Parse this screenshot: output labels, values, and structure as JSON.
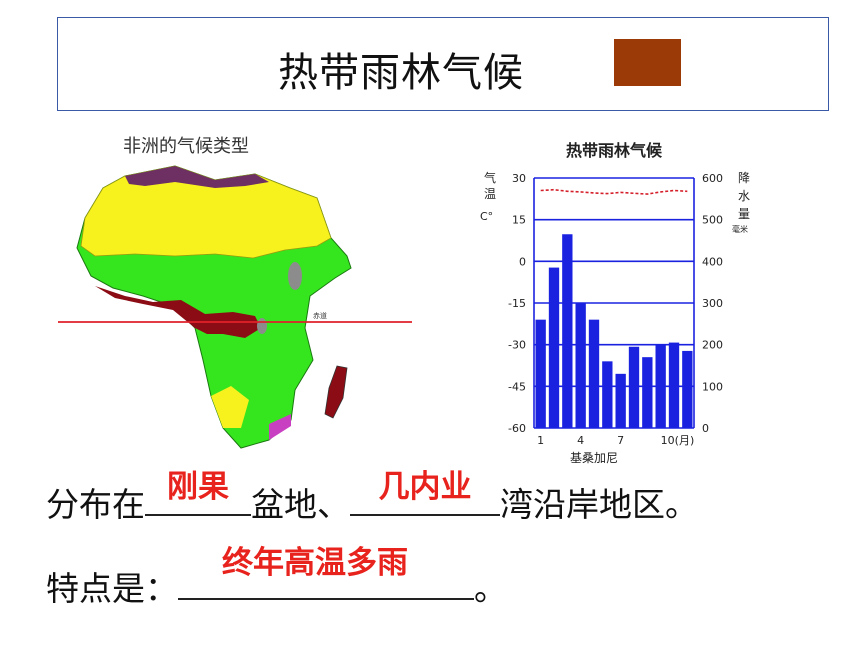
{
  "header": {
    "title": "热带雨林气候",
    "swatch_color": "#9b3a06"
  },
  "map": {
    "title": "非洲的气候类型",
    "equator_label": "赤道"
  },
  "chart_data": {
    "type": "bar",
    "title": "热带雨林气候",
    "left_axis_label": "气温C°",
    "right_axis_label": "降水量毫米",
    "y_left_ticks": [
      "30",
      "15",
      "0",
      "-15",
      "-30",
      "-45",
      "-60"
    ],
    "y_right_ticks": [
      "600",
      "500",
      "400",
      "300",
      "200",
      "100",
      "0"
    ],
    "x_ticks": [
      "1",
      "4",
      "7",
      "10(月)"
    ],
    "xlabel": "基桑加尼",
    "precipitation_ylim": [
      0,
      600
    ],
    "precipitation": [
      260,
      385,
      465,
      300,
      260,
      160,
      130,
      195,
      170,
      200,
      205,
      185
    ],
    "temperature_ylim": [
      -60,
      30
    ],
    "temperature": [
      25.5,
      25.8,
      25.2,
      25.0,
      24.6,
      24.4,
      24.8,
      24.5,
      24.2,
      25.0,
      25.5,
      25.2
    ],
    "bar_color": "#1a22e0",
    "line_color": "#d4202a"
  },
  "text": {
    "line1_prefix": "分布在",
    "line1_mid": "盆地、",
    "line1_suffix": "湾沿岸地区。",
    "answer1": "刚果",
    "answer2": "几内业",
    "line2_prefix": "特点是：",
    "line2_suffix": "。",
    "answer3": "终年高温多雨"
  }
}
